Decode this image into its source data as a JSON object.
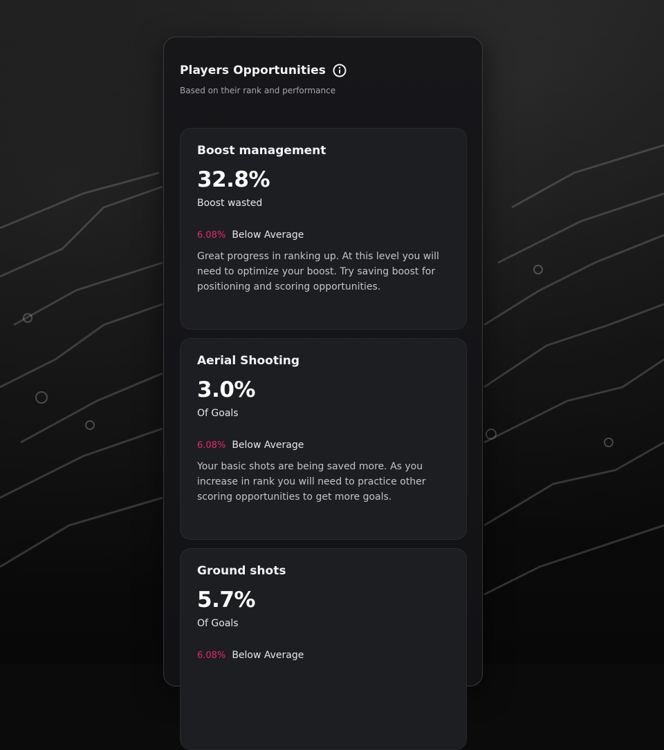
{
  "panel": {
    "title": "Players Opportunities",
    "subtitle": "Based on their rank and performance",
    "info_icon": "info-circle-icon"
  },
  "cards": [
    {
      "title": "Boost management",
      "value": "32.8%",
      "unit": "Boost wasted",
      "compare_pct": "6.08%",
      "compare_label": "Below Average",
      "description": "Great progress in ranking up. At this level you will need to optimize your boost. Try saving boost for positioning and scoring opportunities."
    },
    {
      "title": "Aerial Shooting",
      "value": "3.0%",
      "unit": "Of Goals",
      "compare_pct": "6.08%",
      "compare_label": "Below Average",
      "description": "Your basic shots are being saved more. As you increase in rank you will need to practice other scoring opportunities to get more goals."
    },
    {
      "title": "Ground shots",
      "value": "5.7%",
      "unit": "Of Goals",
      "compare_pct": "6.08%",
      "compare_label": "Below Average",
      "description": ""
    }
  ],
  "colors": {
    "accent_negative": "#e8266e",
    "panel_bg": "#151518",
    "card_bg": "#1d1e21"
  }
}
